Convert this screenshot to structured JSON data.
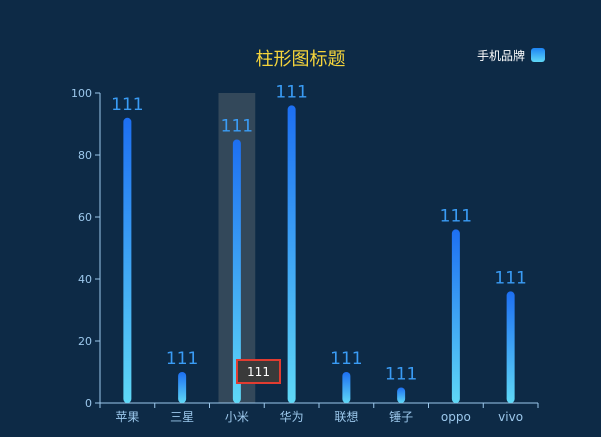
{
  "chart_data": {
    "type": "bar",
    "title": "柱形图标题",
    "legend": {
      "label": "手机品牌",
      "placement": "top-right"
    },
    "categories": [
      "苹果",
      "三星",
      "小米",
      "华为",
      "联想",
      "锤子",
      "oppo",
      "vivo"
    ],
    "series": [
      {
        "name": "手机品牌",
        "values": [
          92,
          10,
          85,
          96,
          10,
          5,
          56,
          36
        ],
        "labels": [
          "111",
          "111",
          "111",
          "111",
          "111",
          "111",
          "111",
          "111"
        ]
      }
    ],
    "ylim": [
      0,
      100
    ],
    "yticks": [
      "0",
      "20",
      "40",
      "60",
      "80",
      "100"
    ],
    "grid": false,
    "highlighted_category": "小米",
    "tooltip": "111"
  },
  "colors": {
    "background": "#0d2a46",
    "title": "#f5d43b",
    "bar_top": "#1d6ff2",
    "bar_bottom": "#5fd8f6",
    "data_label": "#3a9cf5",
    "axis_text": "#9cc8ec",
    "highlight": "#3b4d5e",
    "tooltip_border": "#e03c31"
  }
}
